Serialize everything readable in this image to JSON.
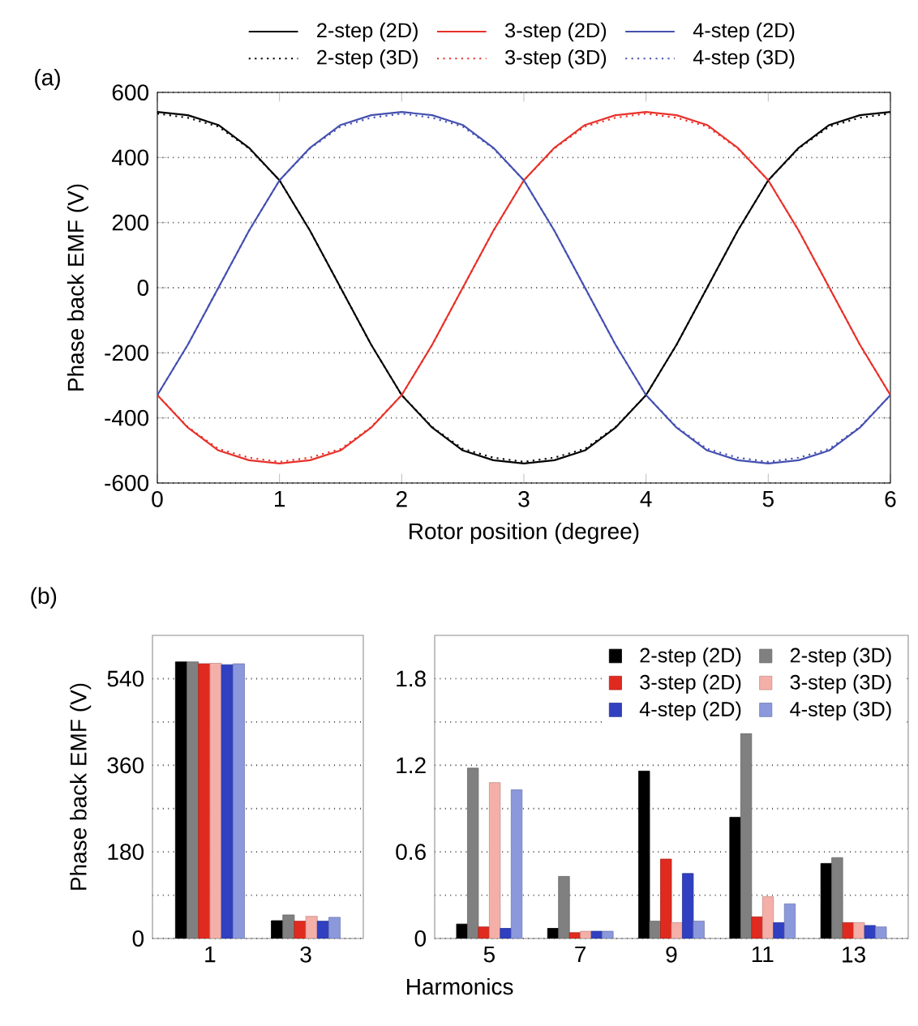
{
  "chart_data": [
    {
      "type": "line",
      "title": "(a)",
      "xlabel": "Rotor position (degree)",
      "ylabel": "Phase back EMF (V)",
      "x": [
        0,
        0.25,
        0.5,
        0.75,
        1,
        1.25,
        1.5,
        1.75,
        2,
        2.25,
        2.5,
        2.75,
        3,
        3.25,
        3.5,
        3.75,
        4,
        4.25,
        4.5,
        4.75,
        5,
        5.25,
        5.5,
        5.75,
        6
      ],
      "xlim": [
        0,
        6
      ],
      "xticks": [
        0,
        1,
        2,
        3,
        4,
        5,
        6
      ],
      "ylim": [
        -600,
        600
      ],
      "yticks": [
        -600,
        -400,
        -200,
        0,
        200,
        400,
        600
      ],
      "grid": "y",
      "legend": "top",
      "series": [
        {
          "name": "2-step (2D)",
          "color": "#000000",
          "line_style": "solid",
          "values": [
            540,
            530,
            500,
            430,
            330,
            175,
            0,
            -175,
            -330,
            -430,
            -500,
            -530,
            -540,
            -530,
            -500,
            -430,
            -330,
            -175,
            0,
            175,
            330,
            430,
            500,
            530,
            540
          ]
        },
        {
          "name": "3-step (2D)",
          "color": "#e8312a",
          "line_style": "solid",
          "values": [
            -330,
            -430,
            -500,
            -530,
            -540,
            -530,
            -500,
            -430,
            -330,
            -175,
            0,
            175,
            330,
            430,
            500,
            530,
            540,
            530,
            500,
            430,
            330,
            175,
            0,
            -175,
            -330
          ]
        },
        {
          "name": "4-step (2D)",
          "color": "#4450b0",
          "line_style": "solid",
          "values": [
            -330,
            -175,
            0,
            175,
            330,
            430,
            500,
            530,
            540,
            530,
            500,
            430,
            330,
            175,
            0,
            -175,
            -330,
            -430,
            -500,
            -530,
            -540,
            -530,
            -500,
            -430,
            -330
          ]
        },
        {
          "name": "2-step (3D)",
          "color": "#000000",
          "line_style": "dotted",
          "values": [
            535,
            522,
            495,
            428,
            330,
            175,
            0,
            -175,
            -330,
            -428,
            -495,
            -522,
            -535,
            -522,
            -495,
            -428,
            -330,
            -175,
            0,
            175,
            330,
            428,
            495,
            522,
            535
          ]
        },
        {
          "name": "3-step (3D)",
          "color": "#e8312a",
          "line_style": "dotted",
          "values": [
            -330,
            -428,
            -495,
            -522,
            -535,
            -522,
            -495,
            -428,
            -330,
            -175,
            0,
            175,
            330,
            428,
            495,
            522,
            535,
            522,
            495,
            428,
            330,
            175,
            0,
            -175,
            -330
          ]
        },
        {
          "name": "4-step (3D)",
          "color": "#4450b0",
          "line_style": "dotted",
          "values": [
            -330,
            -175,
            0,
            175,
            330,
            428,
            495,
            522,
            535,
            522,
            495,
            428,
            330,
            175,
            0,
            -175,
            -330,
            -428,
            -495,
            -522,
            -535,
            -522,
            -495,
            -428,
            -330
          ]
        }
      ]
    },
    {
      "type": "bar",
      "title": "(b)",
      "ylabel": "Phase back EMF (V)",
      "categories": [
        "1",
        "3"
      ],
      "ylim": [
        0,
        630
      ],
      "yticks": [
        0,
        {
          "value": 90,
          "label": null
        },
        180,
        {
          "value": 270,
          "label": null
        },
        360,
        {
          "value": 450,
          "label": null
        },
        540
      ],
      "grid": "y",
      "series": [
        {
          "color": "#000000",
          "values": [
            575,
            37
          ]
        },
        {
          "color": "#808080",
          "values": [
            575,
            49
          ]
        },
        {
          "color": "#e02a20",
          "values": [
            571,
            36
          ]
        },
        {
          "color": "#f4b0a8",
          "values": [
            572,
            46
          ]
        },
        {
          "color": "#3040c0",
          "values": [
            569,
            36
          ]
        },
        {
          "color": "#8c98dc",
          "values": [
            571,
            44
          ]
        }
      ]
    },
    {
      "type": "bar",
      "xlabel": "Harmonics",
      "categories": [
        "5",
        "7",
        "9",
        "11",
        "13"
      ],
      "ylim": [
        0,
        2.1
      ],
      "yticks": [
        0,
        {
          "value": 0.3,
          "label": null
        },
        0.6,
        {
          "value": 0.9,
          "label": null
        },
        1.2,
        {
          "value": 1.5,
          "label": null
        },
        1.8
      ],
      "grid": "y",
      "legend": "top right",
      "series": [
        {
          "name": "2-step (2D)",
          "color": "#000000",
          "values": [
            0.1,
            0.07,
            1.16,
            0.84,
            0.52
          ]
        },
        {
          "name": "2-step (3D)",
          "color": "#808080",
          "values": [
            1.18,
            0.43,
            0.12,
            1.42,
            0.56
          ]
        },
        {
          "name": "3-step (2D)",
          "color": "#e02a20",
          "values": [
            0.08,
            0.04,
            0.55,
            0.15,
            0.11
          ]
        },
        {
          "name": "3-step (3D)",
          "color": "#f4b0a8",
          "values": [
            1.08,
            0.05,
            0.11,
            0.29,
            0.11
          ]
        },
        {
          "name": "4-step (2D)",
          "color": "#3040c0",
          "values": [
            0.07,
            0.05,
            0.45,
            0.11,
            0.09
          ]
        },
        {
          "name": "4-step (3D)",
          "color": "#8c98dc",
          "values": [
            1.03,
            0.05,
            0.12,
            0.24,
            0.08
          ]
        }
      ]
    }
  ]
}
